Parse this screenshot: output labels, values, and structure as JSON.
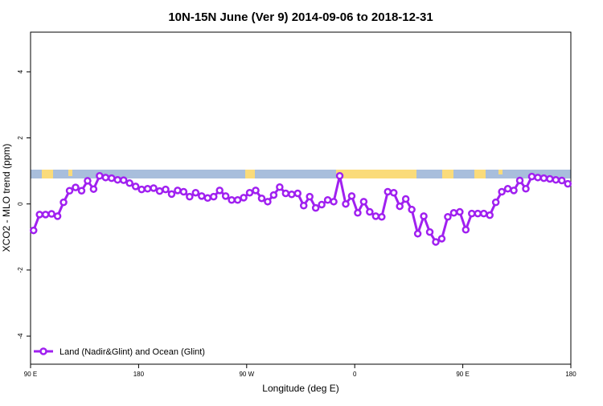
{
  "chart_data": {
    "type": "line",
    "title": "10N-15N June (Ver 9)   2014-09-06 to 2018-12-31",
    "x_label": "Longitude (deg E)",
    "y_label": "XCO2 - MLO trend (ppm)",
    "xlim": [
      90,
      540
    ],
    "ylim": [
      -4.85,
      5.2
    ],
    "xticks": [
      {
        "value": 90,
        "label": "90 E"
      },
      180,
      {
        "value": 270,
        "label": "90 W"
      },
      {
        "value": 360,
        "label": "0"
      },
      {
        "value": 450,
        "label": "90 E"
      },
      {
        "value": 540,
        "label": "180"
      }
    ],
    "yticks": [
      -4,
      -2,
      0,
      2,
      4
    ],
    "legend": "bottom-left",
    "x": [
      92.5,
      97.5,
      102.5,
      107.5,
      112.5,
      117.5,
      122.5,
      127.5,
      132.5,
      137.5,
      142.5,
      147.5,
      152.5,
      157.5,
      162.5,
      167.5,
      172.5,
      177.5,
      182.5,
      187.5,
      192.5,
      197.5,
      202.5,
      207.5,
      212.5,
      217.5,
      222.5,
      227.5,
      232.5,
      237.5,
      242.5,
      247.5,
      252.5,
      257.5,
      262.5,
      267.5,
      272.5,
      277.5,
      282.5,
      287.5,
      292.5,
      297.5,
      302.5,
      307.5,
      312.5,
      317.5,
      322.5,
      327.5,
      332.5,
      337.5,
      342.5,
      347.5,
      352.5,
      357.5,
      362.5,
      367.5,
      372.5,
      377.5,
      382.5,
      387.5,
      392.5,
      397.5,
      402.5,
      407.5,
      412.5,
      417.5,
      422.5,
      427.5,
      432.5,
      437.5,
      442.5,
      447.5,
      452.5,
      457.5,
      462.5,
      467.5,
      472.5,
      477.5,
      482.5,
      487.5,
      492.5,
      497.5,
      502.5,
      507.5,
      512.5,
      517.5,
      522.5,
      527.5,
      532.5,
      537.5
    ],
    "series": [
      {
        "name": "Land (Nadir&Glint) and Ocean (Glint)",
        "color": "#a020f0",
        "values": [
          -0.8,
          -0.32,
          -0.32,
          -0.3,
          -0.37,
          0.05,
          0.4,
          0.5,
          0.4,
          0.7,
          0.45,
          0.85,
          0.8,
          0.78,
          0.73,
          0.72,
          0.63,
          0.53,
          0.44,
          0.46,
          0.48,
          0.39,
          0.44,
          0.3,
          0.41,
          0.37,
          0.22,
          0.34,
          0.24,
          0.18,
          0.22,
          0.41,
          0.24,
          0.12,
          0.12,
          0.19,
          0.34,
          0.41,
          0.17,
          0.07,
          0.27,
          0.51,
          0.32,
          0.29,
          0.32,
          -0.05,
          0.22,
          -0.12,
          -0.02,
          0.12,
          0.07,
          0.85,
          0.0,
          0.24,
          -0.27,
          0.07,
          -0.24,
          -0.37,
          -0.39,
          0.37,
          0.34,
          -0.07,
          0.15,
          -0.17,
          -0.9,
          -0.37,
          -0.85,
          -1.15,
          -1.05,
          -0.39,
          -0.27,
          -0.24,
          -0.78,
          -0.29,
          -0.29,
          -0.29,
          -0.34,
          0.05,
          0.37,
          0.46,
          0.41,
          0.71,
          0.46,
          0.83,
          0.8,
          0.78,
          0.76,
          0.73,
          0.71,
          0.61
        ]
      }
    ]
  }
}
